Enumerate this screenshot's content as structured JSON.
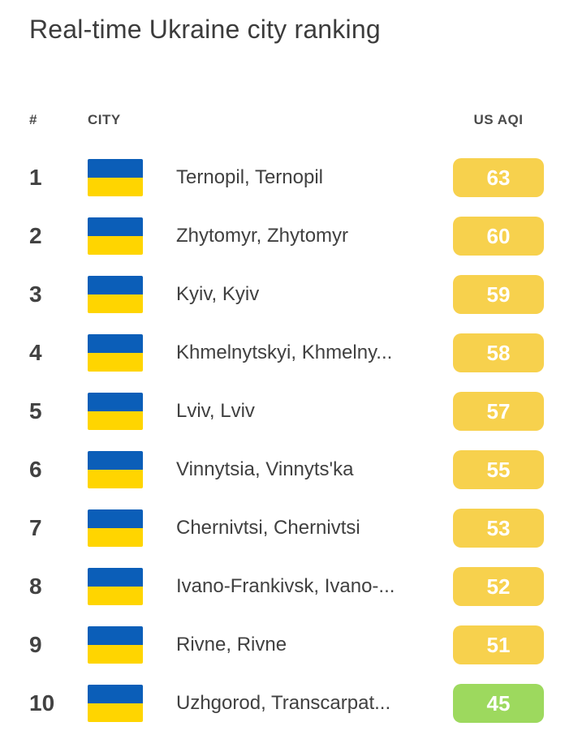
{
  "title": "Real-time Ukraine city ranking",
  "table": {
    "headers": {
      "rank": "#",
      "city": "CITY",
      "aqi": "US AQI"
    },
    "rows": [
      {
        "rank": "1",
        "city": "Ternopil, Ternopil",
        "aqi": "63",
        "level": "moderate"
      },
      {
        "rank": "2",
        "city": "Zhytomyr, Zhytomyr",
        "aqi": "60",
        "level": "moderate"
      },
      {
        "rank": "3",
        "city": "Kyiv, Kyiv",
        "aqi": "59",
        "level": "moderate"
      },
      {
        "rank": "4",
        "city": "Khmelnytskyi, Khmelny...",
        "aqi": "58",
        "level": "moderate"
      },
      {
        "rank": "5",
        "city": "Lviv, Lviv",
        "aqi": "57",
        "level": "moderate"
      },
      {
        "rank": "6",
        "city": "Vinnytsia, Vinnyts'ka",
        "aqi": "55",
        "level": "moderate"
      },
      {
        "rank": "7",
        "city": "Chernivtsi, Chernivtsi",
        "aqi": "53",
        "level": "moderate"
      },
      {
        "rank": "8",
        "city": "Ivano-Frankivsk, Ivano-...",
        "aqi": "52",
        "level": "moderate"
      },
      {
        "rank": "9",
        "city": "Rivne, Rivne",
        "aqi": "51",
        "level": "moderate"
      },
      {
        "rank": "10",
        "city": "Uzhgorod, Transcarpat...",
        "aqi": "45",
        "level": "good"
      }
    ]
  },
  "colors": {
    "moderate": "#F7D14D",
    "good": "#9DD95E",
    "flag_blue": "#0B5EB8",
    "flag_yellow": "#FFD500",
    "badge_text": "#FFFFFF"
  },
  "flag": {
    "country": "Ukraine"
  }
}
